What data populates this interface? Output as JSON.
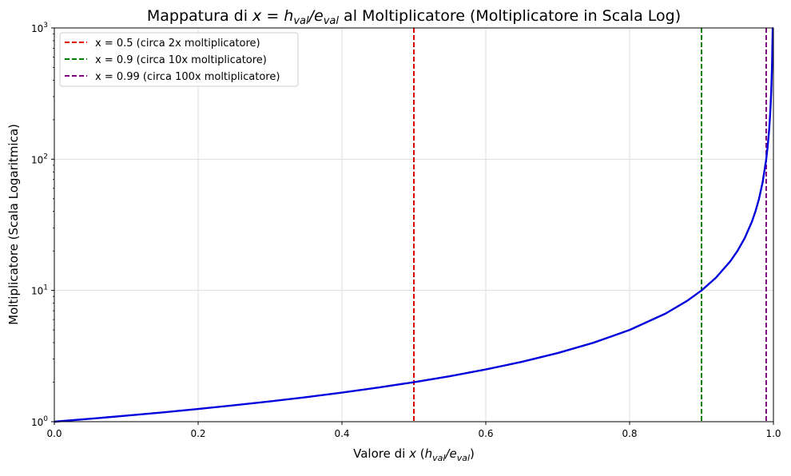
{
  "chart_data": {
    "type": "line",
    "title": {
      "prefix": "Mappatura di ",
      "math_x": "x",
      "math_eq": " = ",
      "math_h": "h",
      "math_val1": "val",
      "math_slash": "/",
      "math_e": "e",
      "math_val2": "val",
      "suffix": " al Moltiplicatore (Moltiplicatore in Scala Log)"
    },
    "xlabel": {
      "prefix": "Valore di ",
      "math_x": "x",
      "open": " (",
      "math_h": "h",
      "math_val1": "val",
      "math_slash": "/",
      "math_e": "e",
      "math_val2": "val",
      "close": ")"
    },
    "ylabel": "Moltiplicatore (Scala Logaritmica)",
    "xlim": [
      0,
      1
    ],
    "ylim": [
      1,
      1000
    ],
    "yscale": "log",
    "grid": true,
    "legend_position": "top-left",
    "x_ticks": [
      {
        "value": 0.0,
        "label": "0.0"
      },
      {
        "value": 0.2,
        "label": "0.2"
      },
      {
        "value": 0.4,
        "label": "0.4"
      },
      {
        "value": 0.6,
        "label": "0.6"
      },
      {
        "value": 0.8,
        "label": "0.8"
      },
      {
        "value": 1.0,
        "label": "1.0"
      }
    ],
    "y_ticks": [
      {
        "value": 1,
        "base": "10",
        "exp": "0"
      },
      {
        "value": 10,
        "base": "10",
        "exp": "1"
      },
      {
        "value": 100,
        "base": "10",
        "exp": "2"
      },
      {
        "value": 1000,
        "base": "10",
        "exp": "3"
      }
    ],
    "curve": {
      "color": "#0000dd",
      "points": [
        [
          0.0,
          1.0
        ],
        [
          0.05,
          1.053
        ],
        [
          0.1,
          1.111
        ],
        [
          0.15,
          1.176
        ],
        [
          0.2,
          1.25
        ],
        [
          0.25,
          1.333
        ],
        [
          0.3,
          1.429
        ],
        [
          0.35,
          1.538
        ],
        [
          0.4,
          1.667
        ],
        [
          0.45,
          1.818
        ],
        [
          0.5,
          2.0
        ],
        [
          0.55,
          2.222
        ],
        [
          0.6,
          2.5
        ],
        [
          0.65,
          2.857
        ],
        [
          0.7,
          3.333
        ],
        [
          0.75,
          4.0
        ],
        [
          0.8,
          5.0
        ],
        [
          0.85,
          6.667
        ],
        [
          0.88,
          8.333
        ],
        [
          0.9,
          10.0
        ],
        [
          0.92,
          12.5
        ],
        [
          0.94,
          16.67
        ],
        [
          0.95,
          20.0
        ],
        [
          0.96,
          25.0
        ],
        [
          0.97,
          33.33
        ],
        [
          0.975,
          40.0
        ],
        [
          0.98,
          50.0
        ],
        [
          0.985,
          66.67
        ],
        [
          0.99,
          100.0
        ],
        [
          0.992,
          125.0
        ],
        [
          0.994,
          166.7
        ],
        [
          0.995,
          200.0
        ],
        [
          0.996,
          250.0
        ],
        [
          0.997,
          333.3
        ],
        [
          0.998,
          500.0
        ],
        [
          0.999,
          1000.0
        ]
      ]
    },
    "vlines": [
      {
        "x": 0.5,
        "color": "#e00000",
        "label": "x = 0.5 (circa 2x moltiplicatore)"
      },
      {
        "x": 0.9,
        "color": "#008000",
        "label": "x = 0.9 (circa 10x moltiplicatore)"
      },
      {
        "x": 0.99,
        "color": "#800080",
        "label": "x = 0.99 (circa 100x moltiplicatore)"
      }
    ]
  }
}
